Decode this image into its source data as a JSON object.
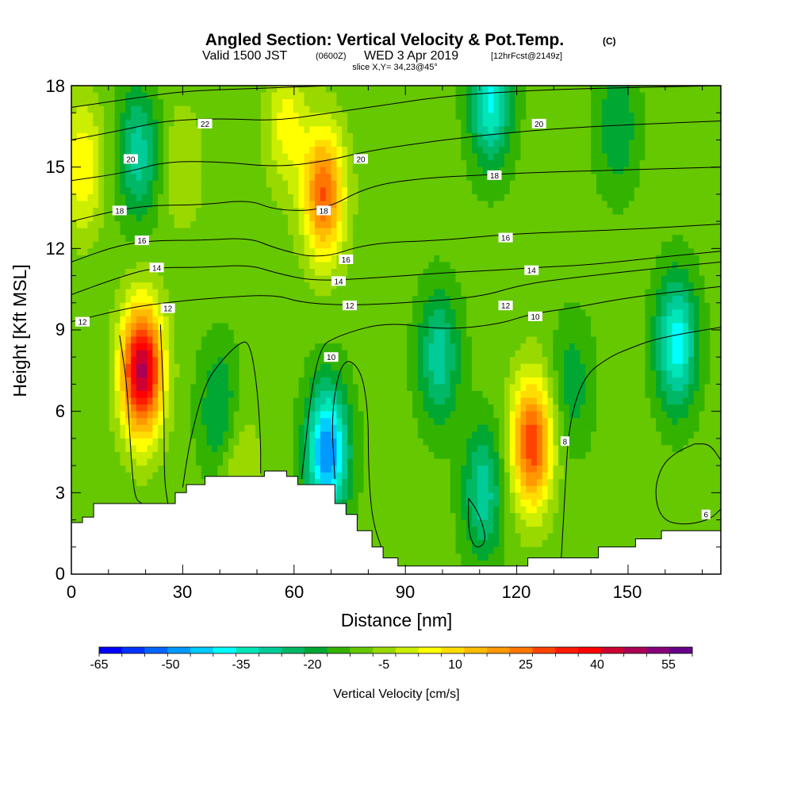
{
  "chart_data": {
    "type": "heatmap",
    "title": "Angled Section: Vertical Velocity & Pot.Temp.",
    "title_units": "(C)",
    "subtitle": {
      "valid": "Valid 1500 JST",
      "utc": "(0600Z)",
      "date": "WED 3 Apr 2019",
      "fcst": "[12hrFcst@2149z]"
    },
    "slice_text": "slice X,Y= 34,23@45°",
    "xlabel": "Distance [nm]",
    "ylabel": "Height [Kft MSL]",
    "xlim": [
      0,
      175
    ],
    "ylim": [
      0,
      18
    ],
    "x_ticks": [
      "0",
      "30",
      "60",
      "90",
      "120",
      "150"
    ],
    "y_ticks": [
      "0",
      "3",
      "6",
      "9",
      "12",
      "15",
      "18"
    ],
    "colorbar": {
      "label": "Vertical Velocity [cm/s]",
      "tick_labels": [
        "-65",
        "-50",
        "-35",
        "-20",
        "-5",
        "10",
        "25",
        "40",
        "55"
      ],
      "levels": [
        -65,
        -60,
        -55,
        -50,
        -45,
        -40,
        -35,
        -30,
        -25,
        -20,
        -15,
        -10,
        -5,
        0,
        5,
        10,
        15,
        20,
        25,
        30,
        35,
        40,
        45,
        50,
        55,
        60
      ],
      "colors": [
        "#0000ff",
        "#0033ff",
        "#0066ff",
        "#0099ff",
        "#00ccff",
        "#00ffff",
        "#00e6b8",
        "#00cc99",
        "#00b866",
        "#00a833",
        "#33b300",
        "#66c800",
        "#99d900",
        "#ccee00",
        "#ffff00",
        "#ffdd00",
        "#ffbb00",
        "#ff9900",
        "#ff7700",
        "#ff4400",
        "#ff1a00",
        "#ff0000",
        "#cc0033",
        "#aa0055",
        "#880077",
        "#660088"
      ]
    },
    "w_features": [
      {
        "x": 19,
        "z": 7.5,
        "amp": 60
      },
      {
        "x": 68,
        "z": 14.0,
        "amp": 38
      },
      {
        "x": 124,
        "z": 4.8,
        "amp": 42
      },
      {
        "x": 69,
        "z": 4.5,
        "amp": -42
      },
      {
        "x": 163,
        "z": 8.5,
        "amp": -30
      },
      {
        "x": 18,
        "z": 15.5,
        "amp": -20
      },
      {
        "x": 113,
        "z": 17.5,
        "amp": -28
      },
      {
        "x": 3,
        "z": 15.0,
        "amp": 18
      },
      {
        "x": 58,
        "z": 16.5,
        "amp": 15
      },
      {
        "x": 99,
        "z": 8.0,
        "amp": -20
      },
      {
        "x": 111,
        "z": 3.0,
        "amp": -20
      },
      {
        "x": 40,
        "z": 6.0,
        "amp": -14
      },
      {
        "x": 147,
        "z": 16.5,
        "amp": -12
      },
      {
        "x": 45,
        "z": 4.0,
        "amp": 10
      },
      {
        "x": 135,
        "z": 7.0,
        "amp": -10
      },
      {
        "x": 30,
        "z": 15.0,
        "amp": 8
      }
    ],
    "theta_contours": [
      {
        "label": "8",
        "points": [
          [
            132,
            0.6
          ],
          [
            133,
            3
          ],
          [
            134,
            5.5
          ],
          [
            138,
            7.3
          ],
          [
            145,
            8
          ],
          [
            150,
            8.3
          ],
          [
            158,
            8.7
          ],
          [
            175,
            9.1
          ]
        ]
      },
      {
        "label": "10",
        "points": [
          [
            62,
            3.5
          ],
          [
            66,
            8.3
          ],
          [
            72,
            8.8
          ],
          [
            85,
            9.3
          ],
          [
            100,
            9.0
          ],
          [
            115,
            9.2
          ],
          [
            124,
            9.6
          ],
          [
            135,
            9.8
          ],
          [
            150,
            10.2
          ],
          [
            175,
            10.6
          ]
        ]
      },
      {
        "label": "12",
        "points": [
          [
            0,
            9.3
          ],
          [
            15,
            9.8
          ],
          [
            25,
            10
          ],
          [
            40,
            10.2
          ],
          [
            55,
            10.3
          ],
          [
            62,
            10.0
          ],
          [
            75,
            9.9
          ],
          [
            90,
            10.0
          ],
          [
            110,
            10.2
          ],
          [
            122,
            10.7
          ],
          [
            140,
            11.0
          ],
          [
            160,
            11.3
          ],
          [
            175,
            11.5
          ]
        ]
      },
      {
        "label": "14",
        "points": [
          [
            0,
            10.3
          ],
          [
            12,
            10.9
          ],
          [
            22,
            11.3
          ],
          [
            35,
            11.3
          ],
          [
            48,
            11.4
          ],
          [
            55,
            11.1
          ],
          [
            65,
            10.8
          ],
          [
            80,
            10.9
          ],
          [
            100,
            11.1
          ],
          [
            115,
            11.2
          ],
          [
            125,
            11.3
          ],
          [
            140,
            11.4
          ],
          [
            160,
            11.7
          ],
          [
            175,
            11.9
          ]
        ]
      },
      {
        "label": "16",
        "points": [
          [
            0,
            11.5
          ],
          [
            12,
            12.1
          ],
          [
            22,
            12.3
          ],
          [
            35,
            12.3
          ],
          [
            48,
            12.4
          ],
          [
            55,
            12.0
          ],
          [
            67,
            11.6
          ],
          [
            80,
            12.2
          ],
          [
            100,
            12.3
          ],
          [
            115,
            12.5
          ],
          [
            130,
            12.6
          ],
          [
            150,
            12.7
          ],
          [
            175,
            12.9
          ]
        ]
      },
      {
        "label": "18",
        "points": [
          [
            0,
            13.0
          ],
          [
            12,
            13.4
          ],
          [
            22,
            13.6
          ],
          [
            35,
            13.6
          ],
          [
            48,
            13.8
          ],
          [
            55,
            13.4
          ],
          [
            68,
            13.4
          ],
          [
            80,
            14.3
          ],
          [
            95,
            14.6
          ],
          [
            110,
            14.7
          ],
          [
            125,
            14.8
          ],
          [
            150,
            14.9
          ],
          [
            175,
            15.0
          ]
        ]
      },
      {
        "label": "20",
        "points": [
          [
            0,
            14.5
          ],
          [
            15,
            14.8
          ],
          [
            25,
            15.2
          ],
          [
            40,
            15.2
          ],
          [
            55,
            15.0
          ],
          [
            68,
            15.2
          ],
          [
            80,
            15.6
          ],
          [
            100,
            16.0
          ],
          [
            120,
            16.3
          ],
          [
            140,
            16.5
          ],
          [
            175,
            16.7
          ]
        ]
      },
      {
        "label": "22",
        "points": [
          [
            0,
            16.0
          ],
          [
            15,
            16.4
          ],
          [
            25,
            16.7
          ],
          [
            40,
            16.8
          ],
          [
            55,
            16.7
          ],
          [
            70,
            17.0
          ],
          [
            85,
            17.3
          ],
          [
            100,
            17.6
          ],
          [
            120,
            17.8
          ],
          [
            140,
            17.9
          ],
          [
            175,
            18.0
          ]
        ]
      },
      {
        "label": "",
        "points": [
          [
            0,
            17.2
          ],
          [
            15,
            17.5
          ],
          [
            30,
            17.8
          ],
          [
            50,
            17.9
          ],
          [
            70,
            18.0
          ]
        ]
      }
    ],
    "extra_contours": [
      {
        "label": "",
        "points": [
          [
            107,
            2.8
          ],
          [
            110,
            2.2
          ],
          [
            112,
            1.2
          ],
          [
            109,
            0.9
          ],
          [
            107,
            1.5
          ],
          [
            107,
            2.8
          ]
        ]
      },
      {
        "label": "6",
        "points": [
          [
            168,
            4.8
          ],
          [
            163,
            4.5
          ],
          [
            159,
            4.0
          ],
          [
            157,
            3.0
          ],
          [
            159,
            2.0
          ],
          [
            165,
            1.8
          ],
          [
            172,
            2.0
          ],
          [
            175,
            2.4
          ]
        ]
      },
      {
        "label": "",
        "points": [
          [
            175,
            4.2
          ],
          [
            172,
            4.8
          ],
          [
            168,
            4.8
          ]
        ]
      },
      {
        "label": "",
        "points": [
          [
            13,
            8.8
          ],
          [
            15,
            7
          ],
          [
            16,
            4.5
          ],
          [
            17,
            2.8
          ],
          [
            19,
            2.6
          ]
        ]
      },
      {
        "label": "",
        "points": [
          [
            24,
            9.2
          ],
          [
            25,
            6
          ],
          [
            25,
            3.5
          ],
          [
            26,
            2.6
          ]
        ]
      },
      {
        "label": "",
        "points": [
          [
            30,
            3.2
          ],
          [
            32,
            5
          ],
          [
            36,
            7
          ],
          [
            40,
            7.8
          ],
          [
            45,
            8.5
          ],
          [
            48,
            8.6
          ],
          [
            50,
            7
          ],
          [
            51,
            5
          ],
          [
            51,
            3.7
          ]
        ]
      },
      {
        "label": "",
        "points": [
          [
            71,
            3.5
          ],
          [
            70,
            6
          ],
          [
            73,
            8.0
          ],
          [
            78,
            7.6
          ],
          [
            80,
            6
          ],
          [
            80,
            4
          ],
          [
            81,
            2.0
          ],
          [
            84,
            0.8
          ]
        ]
      },
      {
        "label": "",
        "points": [
          [
            75,
            2.0
          ],
          [
            77,
            1.2
          ],
          [
            80,
            0.8
          ]
        ]
      }
    ],
    "contour_labels": [
      {
        "text": "22",
        "x": 36,
        "z": 16.6
      },
      {
        "text": "20",
        "x": 16,
        "z": 15.3
      },
      {
        "text": "20",
        "x": 78,
        "z": 15.3
      },
      {
        "text": "20",
        "x": 126,
        "z": 16.6
      },
      {
        "text": "18",
        "x": 13,
        "z": 13.4
      },
      {
        "text": "18",
        "x": 68,
        "z": 13.4
      },
      {
        "text": "18",
        "x": 114,
        "z": 14.7
      },
      {
        "text": "16",
        "x": 19,
        "z": 12.3
      },
      {
        "text": "16",
        "x": 74,
        "z": 11.6
      },
      {
        "text": "16",
        "x": 117,
        "z": 12.4
      },
      {
        "text": "14",
        "x": 23,
        "z": 11.3
      },
      {
        "text": "14",
        "x": 72,
        "z": 10.8
      },
      {
        "text": "14",
        "x": 124,
        "z": 11.2
      },
      {
        "text": "12",
        "x": 3,
        "z": 9.3
      },
      {
        "text": "12",
        "x": 26,
        "z": 9.8
      },
      {
        "text": "12",
        "x": 75,
        "z": 9.9
      },
      {
        "text": "12",
        "x": 117,
        "z": 9.9
      },
      {
        "text": "10",
        "x": 70,
        "z": 8.0
      },
      {
        "text": "10",
        "x": 125,
        "z": 9.5
      },
      {
        "text": "8",
        "x": 133,
        "z": 4.9
      },
      {
        "text": "6",
        "x": 171,
        "z": 2.2
      }
    ],
    "terrain": [
      [
        0,
        1.9
      ],
      [
        3,
        1.9
      ],
      [
        3,
        2.1
      ],
      [
        6,
        2.1
      ],
      [
        6,
        2.6
      ],
      [
        28,
        2.6
      ],
      [
        28,
        3.0
      ],
      [
        31,
        3.0
      ],
      [
        31,
        3.3
      ],
      [
        36,
        3.3
      ],
      [
        36,
        3.6
      ],
      [
        52,
        3.6
      ],
      [
        52,
        3.8
      ],
      [
        58,
        3.8
      ],
      [
        58,
        3.6
      ],
      [
        61,
        3.6
      ],
      [
        61,
        3.3
      ],
      [
        71,
        3.3
      ],
      [
        71,
        2.6
      ],
      [
        74,
        2.6
      ],
      [
        74,
        2.2
      ],
      [
        77,
        2.2
      ],
      [
        77,
        1.6
      ],
      [
        81,
        1.6
      ],
      [
        81,
        1.0
      ],
      [
        84,
        1.0
      ],
      [
        84,
        0.6
      ],
      [
        88,
        0.6
      ],
      [
        88,
        0.3
      ],
      [
        123,
        0.3
      ],
      [
        123,
        0.6
      ],
      [
        142,
        0.6
      ],
      [
        142,
        1.0
      ],
      [
        152,
        1.0
      ],
      [
        152,
        1.3
      ],
      [
        159,
        1.3
      ],
      [
        159,
        1.6
      ],
      [
        175,
        1.6
      ]
    ]
  }
}
